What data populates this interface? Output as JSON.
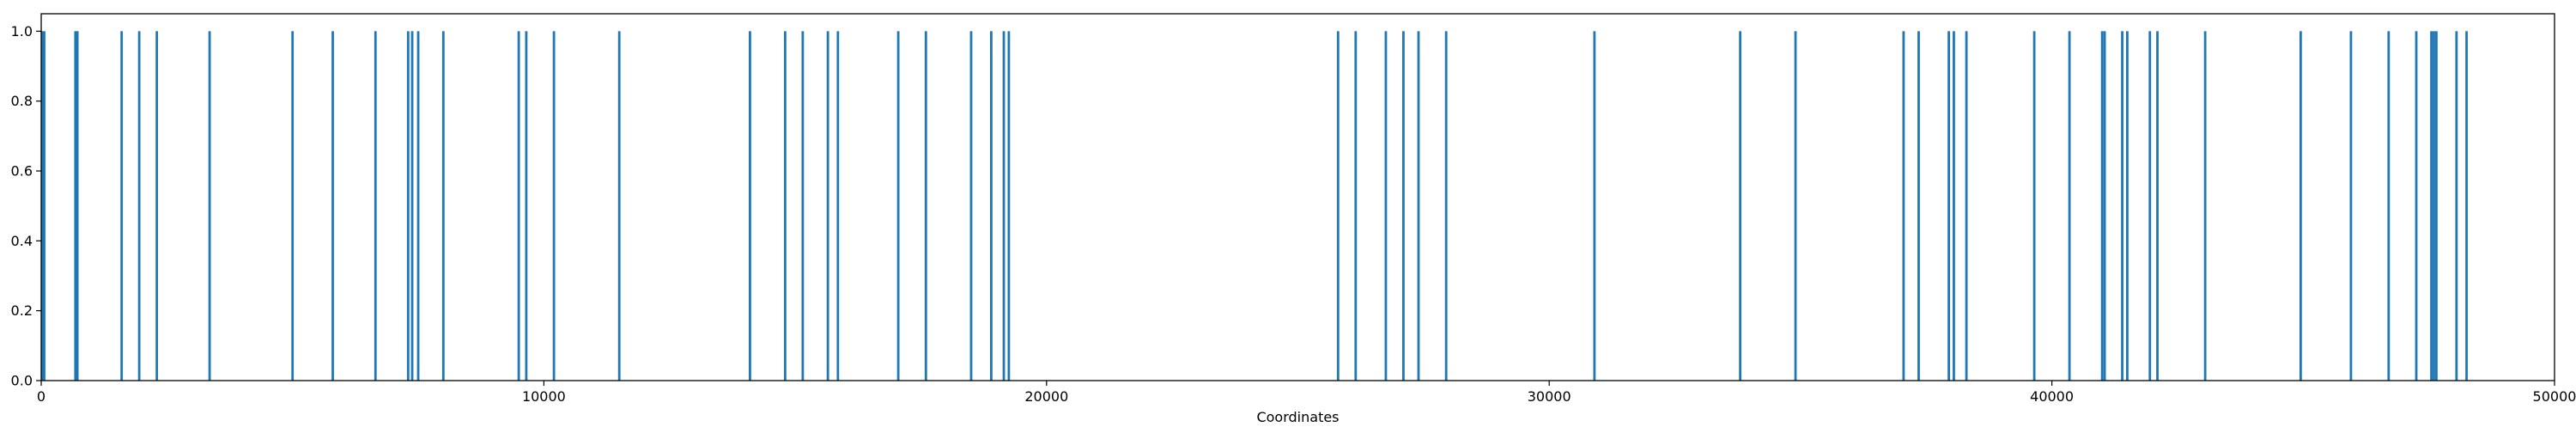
{
  "chart_data": {
    "type": "bar",
    "title": "",
    "xlabel": "Coordinates",
    "ylabel": "",
    "xlim": [
      0,
      50000
    ],
    "ylim": [
      0,
      1.05
    ],
    "x_ticks": [
      0,
      10000,
      20000,
      30000,
      40000,
      50000
    ],
    "y_ticks": [
      0.0,
      0.2,
      0.4,
      0.6,
      0.8,
      1.0
    ],
    "x_tick_labels": [
      "0",
      "10000",
      "20000",
      "30000",
      "40000",
      "50000"
    ],
    "y_tick_labels": [
      "0.0",
      "0.2",
      "0.4",
      "0.6",
      "0.8",
      "1.0"
    ],
    "grid": false,
    "legend": "none",
    "bar_color": "#1f77b4",
    "series": [
      {
        "x": [
          20,
          60,
          680,
          720,
          1600,
          1950,
          2300,
          3350,
          5000,
          5800,
          6650,
          7300,
          7380,
          7500,
          8000,
          9500,
          9650,
          10200,
          11500,
          14100,
          14800,
          15150,
          15650,
          15850,
          17050,
          17600,
          18500,
          18900,
          19150,
          19250,
          25800,
          26150,
          26750,
          27100,
          27400,
          27950,
          30900,
          33800,
          34900,
          37050,
          37350,
          37950,
          38050,
          38300,
          39650,
          40350,
          41000,
          41050,
          41400,
          41500,
          41950,
          42100,
          43050,
          44950,
          45950,
          46700,
          47250,
          47550,
          47600,
          47650,
          48050,
          48250
        ],
        "values": [
          1,
          1,
          1,
          1,
          1,
          1,
          1,
          1,
          1,
          1,
          1,
          1,
          1,
          1,
          1,
          1,
          1,
          1,
          1,
          1,
          1,
          1,
          1,
          1,
          1,
          1,
          1,
          1,
          1,
          1,
          1,
          1,
          1,
          1,
          1,
          1,
          1,
          1,
          1,
          1,
          1,
          1,
          1,
          1,
          1,
          1,
          1,
          1,
          1,
          1,
          1,
          1,
          1,
          1,
          1,
          1,
          1,
          1,
          1,
          1,
          1,
          1
        ]
      }
    ]
  }
}
